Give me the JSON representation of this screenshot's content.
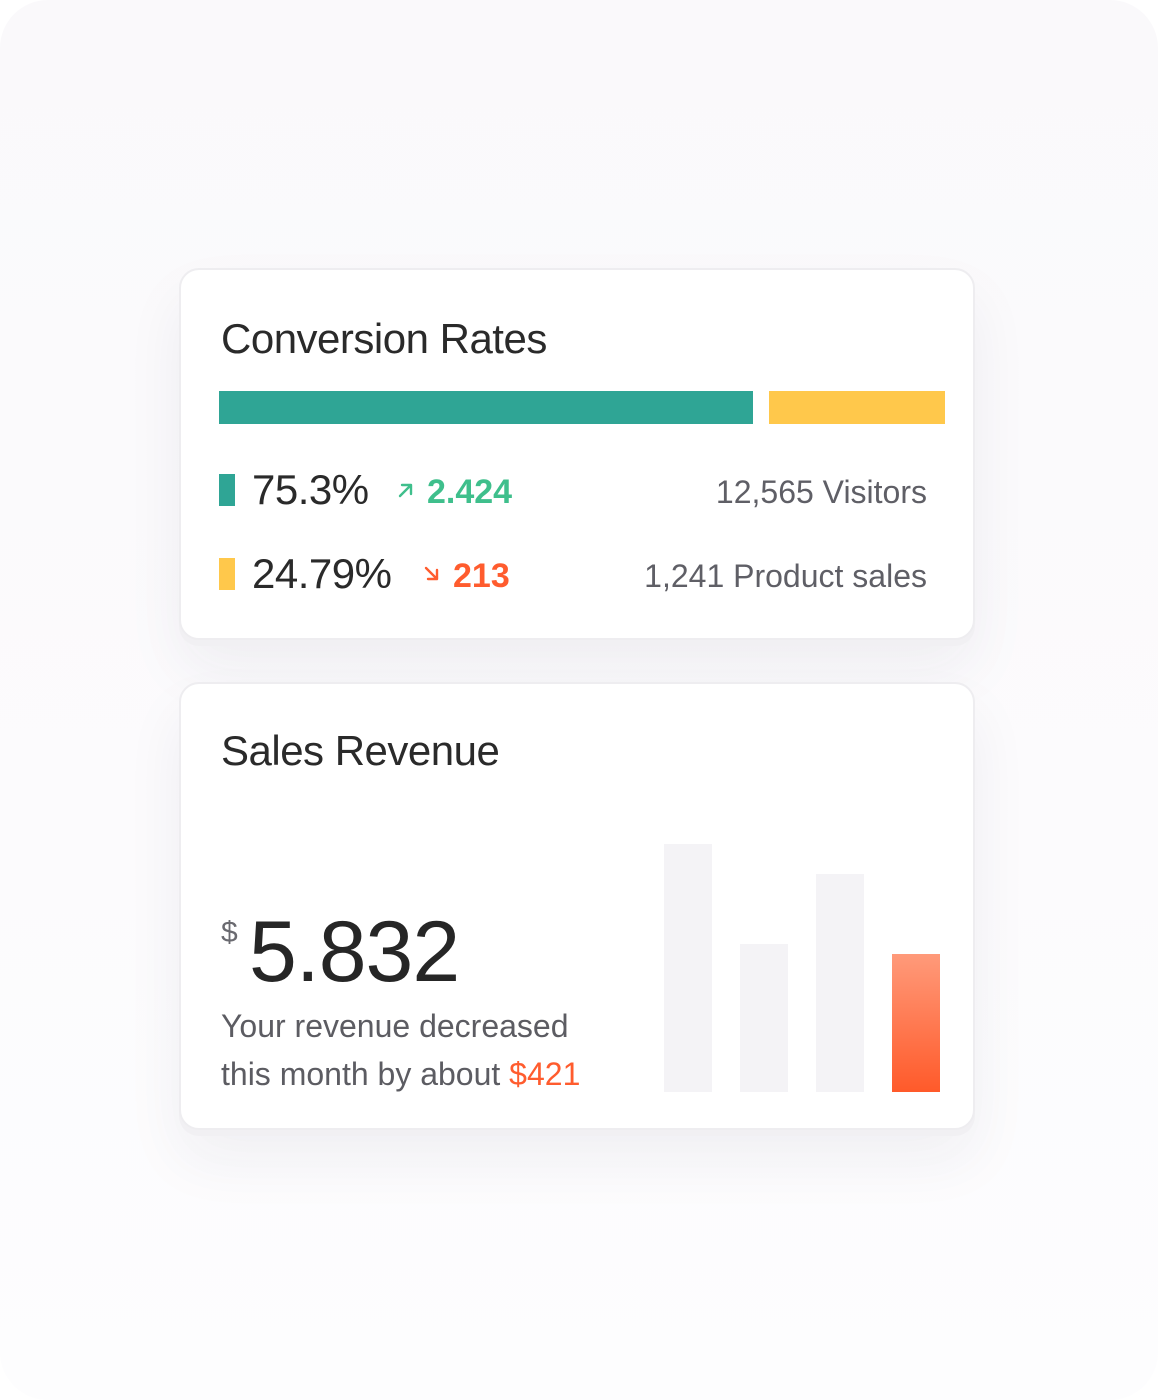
{
  "colors": {
    "teal": "#2fa595",
    "yellow": "#ffc84b",
    "green_text": "#3fbf8c",
    "orange": "#ff5c2e",
    "bar_gray": "#f4f3f6"
  },
  "conversion": {
    "title": "Conversion Rates",
    "split": [
      {
        "name": "visitors",
        "share": 0.753,
        "color": "#2fa595"
      },
      {
        "name": "product-sales",
        "share": 0.2479,
        "color": "#ffc84b"
      }
    ],
    "rows": [
      {
        "percent": "75.3%",
        "delta": "2.424",
        "delta_direction": "up",
        "delta_icon": "arrow-up-right-icon",
        "right_label": "12,565 Visitors",
        "color": "#2fa595",
        "delta_color": "#3fbf8c"
      },
      {
        "percent": "24.79%",
        "delta": "213",
        "delta_direction": "down",
        "delta_icon": "arrow-down-right-icon",
        "right_label": "1,241 Product sales",
        "color": "#ffc84b",
        "delta_color": "#ff5c2e"
      }
    ]
  },
  "revenue": {
    "title": "Sales Revenue",
    "currency": "$",
    "value": "5.832",
    "note_line1": "Your revenue decreased",
    "note_line2_prefix": "this month by about",
    "note_amount": "$421"
  },
  "chart_data": {
    "type": "bar",
    "categories": [
      "",
      "",
      "",
      ""
    ],
    "values": [
      248,
      148,
      218,
      138
    ],
    "ylim": [
      0,
      248
    ],
    "highlight_index": 3,
    "title": "",
    "xlabel": "",
    "ylabel": "",
    "grid": false
  }
}
